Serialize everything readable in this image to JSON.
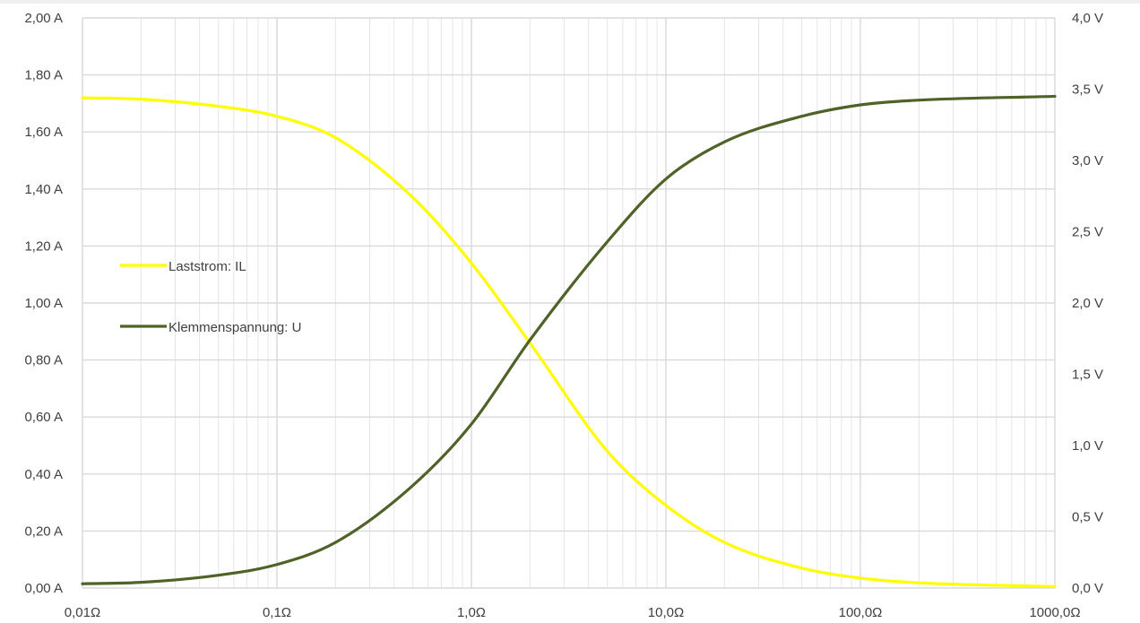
{
  "chart_data": {
    "type": "line",
    "x_scale": "log",
    "xlim": [
      0.01,
      1000
    ],
    "ylim_left": [
      0,
      2
    ],
    "ylim_right": [
      0,
      4
    ],
    "grid": true,
    "legend_position": "center-left",
    "x_tick_labels": [
      "0,01Ω",
      "0,1Ω",
      "1,0Ω",
      "10,0Ω",
      "100,0Ω",
      "1000,0Ω"
    ],
    "y_left_tick_labels": [
      "0,00 A",
      "0,20 A",
      "0,40 A",
      "0,60 A",
      "0,80 A",
      "1,00 A",
      "1,20 A",
      "1,40 A",
      "1,60 A",
      "1,80 A",
      "2,00 A"
    ],
    "y_right_tick_labels": [
      "0,0 V",
      "0,5 V",
      "1,0 V",
      "1,5 V",
      "2,0 V",
      "2,5 V",
      "3,0 V",
      "3,5 V",
      "4,0 V"
    ],
    "series": [
      {
        "name": "Laststrom: IL",
        "axis": "left",
        "color": "#ffff00",
        "x": [
          0.01,
          0.02,
          0.05,
          0.1,
          0.2,
          0.5,
          1,
          2,
          5,
          10,
          20,
          50,
          100,
          180,
          1000
        ],
        "y": [
          1.72,
          1.715,
          1.69,
          1.655,
          1.58,
          1.37,
          1.14,
          0.86,
          0.48,
          0.29,
          0.16,
          0.07,
          0.035,
          0.02,
          0.005
        ]
      },
      {
        "name": "Klemmenspannung: U",
        "axis": "right",
        "color": "#4f6228",
        "x": [
          0.01,
          0.02,
          0.05,
          0.1,
          0.2,
          0.5,
          1,
          2,
          5,
          10,
          20,
          50,
          100,
          180,
          1000
        ],
        "y": [
          0.03,
          0.04,
          0.09,
          0.165,
          0.32,
          0.72,
          1.15,
          1.74,
          2.43,
          2.87,
          3.13,
          3.31,
          3.39,
          3.42,
          3.45
        ]
      }
    ]
  }
}
